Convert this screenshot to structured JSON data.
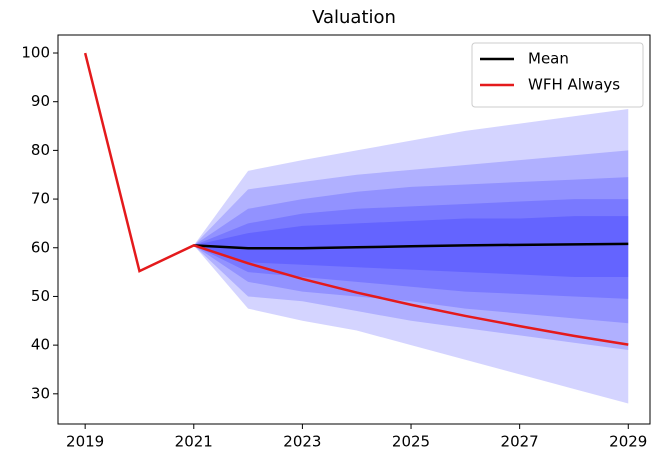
{
  "chart_data": {
    "type": "fan",
    "title": "Valuation",
    "x": [
      2019,
      2020,
      2021,
      2022,
      2023,
      2024,
      2025,
      2026,
      2027,
      2028,
      2029
    ],
    "xlim": [
      2018.5,
      2029.4
    ],
    "xticks": [
      2019,
      2021,
      2023,
      2025,
      2027,
      2029
    ],
    "ylim": [
      23.8,
      103.7
    ],
    "yticks": [
      30,
      40,
      50,
      60,
      70,
      80,
      90,
      100
    ],
    "legend": "upper right",
    "fan_color": "#0000ff",
    "fan": [
      {
        "upper": [
          null,
          null,
          60.5,
          75.8,
          78,
          80,
          82,
          84,
          85.5,
          87,
          88.5
        ],
        "lower": [
          null,
          null,
          60.5,
          47.5,
          45,
          43,
          40,
          37,
          34,
          31,
          28
        ]
      },
      {
        "upper": [
          null,
          null,
          60.5,
          72,
          73.5,
          75,
          76,
          77,
          78,
          79,
          80
        ],
        "lower": [
          null,
          null,
          60.5,
          50,
          49,
          47,
          45,
          43.5,
          42,
          40.5,
          39
        ]
      },
      {
        "upper": [
          null,
          null,
          60.5,
          68,
          70,
          71.5,
          72.5,
          73,
          73.5,
          74,
          74.5
        ],
        "lower": [
          null,
          null,
          60.5,
          53,
          51,
          50,
          49,
          47.5,
          46.5,
          45.5,
          44.5
        ]
      },
      {
        "upper": [
          null,
          null,
          60.5,
          65,
          67,
          68,
          68.5,
          69,
          69.5,
          70,
          70
        ],
        "lower": [
          null,
          null,
          60.5,
          55,
          54,
          53,
          52,
          51,
          50.5,
          50,
          49.5
        ]
      },
      {
        "upper": [
          null,
          null,
          60.5,
          63,
          64.5,
          65,
          65.5,
          66,
          66,
          66.5,
          66.5
        ],
        "lower": [
          null,
          null,
          60.5,
          57,
          56.5,
          56,
          55.5,
          55,
          54.5,
          54,
          54
        ]
      }
    ],
    "series": [
      {
        "name": "Mean",
        "color": "#000000",
        "values": [
          null,
          null,
          60.5,
          59.9,
          59.9,
          60.1,
          60.3,
          60.5,
          60.6,
          60.7,
          60.8
        ]
      },
      {
        "name": "WFH Always",
        "color": "#e41a1c",
        "values": [
          100,
          55.2,
          60.5,
          56.8,
          53.6,
          50.8,
          48.3,
          46.0,
          43.9,
          41.9,
          40.1
        ]
      }
    ]
  }
}
